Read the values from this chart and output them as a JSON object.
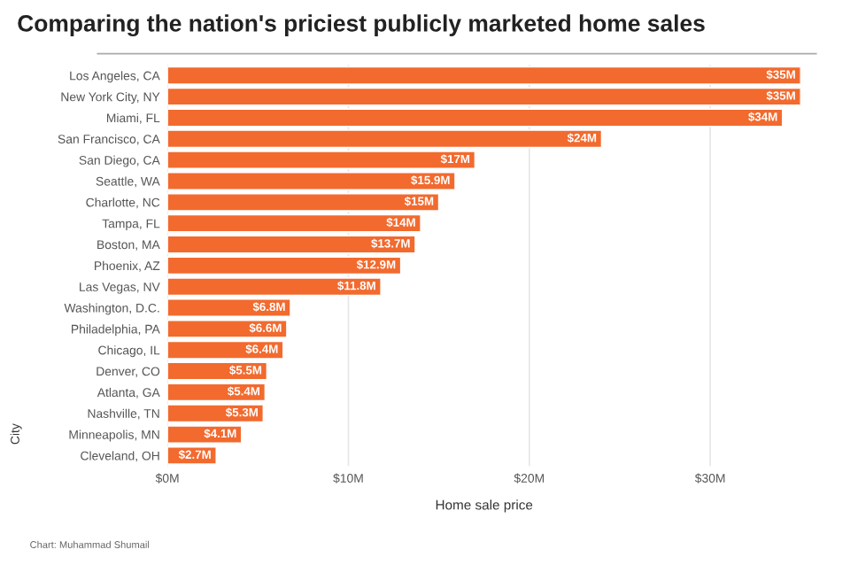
{
  "chart_data": {
    "type": "bar",
    "orientation": "horizontal",
    "title": "Comparing the nation's priciest publicly marketed home sales",
    "xlabel": "Home sale price",
    "ylabel": "City",
    "categories": [
      "Los Angeles, CA",
      "New York City, NY",
      "Miami, FL",
      "San Francisco, CA",
      "San Diego, CA",
      "Seattle, WA",
      "Charlotte, NC",
      "Tampa, FL",
      "Boston, MA",
      "Phoenix, AZ",
      "Las Vegas, NV",
      "Washington, D.C.",
      "Philadelphia, PA",
      "Chicago, IL",
      "Denver, CO",
      "Atlanta, GA",
      "Nashville, TN",
      "Minneapolis, MN",
      "Cleveland, OH"
    ],
    "values": [
      35,
      35,
      34,
      24,
      17,
      15.9,
      15,
      14,
      13.7,
      12.9,
      11.8,
      6.8,
      6.6,
      6.4,
      5.5,
      5.4,
      5.3,
      4.1,
      2.7
    ],
    "value_labels": [
      "$35M",
      "$35M",
      "$34M",
      "$24M",
      "$17M",
      "$15.9M",
      "$15M",
      "$14M",
      "$13.7M",
      "$12.9M",
      "$11.8M",
      "$6.8M",
      "$6.6M",
      "$6.4M",
      "$5.5M",
      "$5.4M",
      "$5.3M",
      "$4.1M",
      "$2.7M"
    ],
    "color": "#f26a2e",
    "xlim": [
      0,
      35
    ],
    "xticks": [
      {
        "value": 0,
        "label": "$0M"
      },
      {
        "value": 10,
        "label": "$10M"
      },
      {
        "value": 20,
        "label": "$20M"
      },
      {
        "value": 30,
        "label": "$30M"
      }
    ],
    "grid": "x",
    "annotations": [
      "Chart: Muhammad Shumail"
    ]
  }
}
